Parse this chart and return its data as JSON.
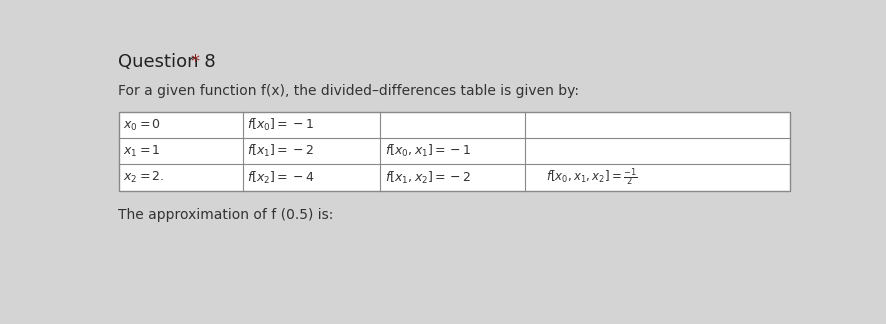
{
  "title_regular": "Question 8 ",
  "title_star": "*",
  "subtitle": "For a given function f(x), the divided–differences table is given by:",
  "bg_color": "#d4d4d4",
  "title_color": "#222222",
  "star_color": "#8b2020",
  "text_color": "#333333",
  "table_bg": "#f0f0f0",
  "table_line_color": "#888888",
  "cells": [
    [
      "$x_0=0$",
      "$f[x_0]=-1$",
      "",
      ""
    ],
    [
      "$x_1=1$",
      "$f[x_1]=-2$",
      "$f[x_0,x_1]=-1$",
      ""
    ],
    [
      "$x_2=2.$",
      "$f[x_2]=-4$",
      "$f[x_1,x_2]=-2$",
      "$f[x_0,x_1,x_2]=\\frac{-1}{2}$"
    ]
  ],
  "footer": "The approximation of f (0.5) is:"
}
